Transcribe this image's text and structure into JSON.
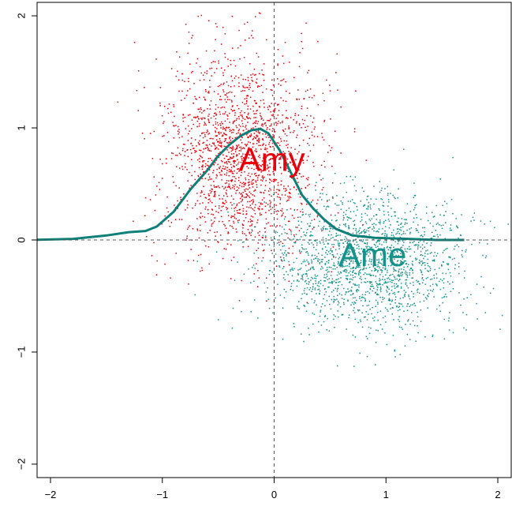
{
  "chart_data": {
    "type": "scatter",
    "title": "",
    "xlabel": "",
    "ylabel": "",
    "xlim": [
      -2.12,
      2.12
    ],
    "ylim": [
      -2.12,
      2.12
    ],
    "xticks": [
      -2,
      -1,
      0,
      1,
      2
    ],
    "yticks": [
      -2,
      -1,
      0,
      1,
      2
    ],
    "xtick_labels": [
      "−2",
      "−1",
      "0",
      "1",
      "2"
    ],
    "ytick_labels": [
      "−2",
      "−1",
      "0",
      "1",
      "2"
    ],
    "grid": false,
    "reference_lines": {
      "x": 0,
      "y": 0,
      "style": "dashed"
    },
    "series": [
      {
        "name": "Amy",
        "kind": "points",
        "color": "#e8000b",
        "distribution": {
          "mean_x": -0.3,
          "mean_y": 0.75,
          "sd_x": 0.35,
          "sd_y": 0.45,
          "n": 1800
        }
      },
      {
        "name": "Ame",
        "kind": "points",
        "color": "#16928a",
        "distribution": {
          "mean_x": 0.85,
          "mean_y": -0.2,
          "sd_x": 0.45,
          "sd_y": 0.3,
          "n": 1800
        }
      },
      {
        "kind": "line",
        "color": "#0f7f78",
        "x": [
          -2.2,
          -1.8,
          -1.5,
          -1.3,
          -1.15,
          -1.05,
          -0.9,
          -0.75,
          -0.6,
          -0.5,
          -0.4,
          -0.3,
          -0.2,
          -0.12,
          -0.05,
          0.05,
          0.15,
          0.25,
          0.35,
          0.45,
          0.55,
          0.7,
          0.9,
          1.2,
          1.45,
          1.7
        ],
        "y": [
          0.0,
          0.01,
          0.04,
          0.07,
          0.08,
          0.12,
          0.25,
          0.45,
          0.62,
          0.75,
          0.85,
          0.93,
          0.98,
          0.99,
          0.95,
          0.8,
          0.6,
          0.4,
          0.28,
          0.18,
          0.1,
          0.04,
          0.02,
          0.01,
          0.0,
          0.0
        ]
      }
    ],
    "annotations": [
      {
        "text": "Amy",
        "x": -0.02,
        "y": 0.72,
        "color": "#e8000b"
      },
      {
        "text": "Ame",
        "x": 0.88,
        "y": -0.13,
        "color": "#16928a"
      }
    ]
  }
}
